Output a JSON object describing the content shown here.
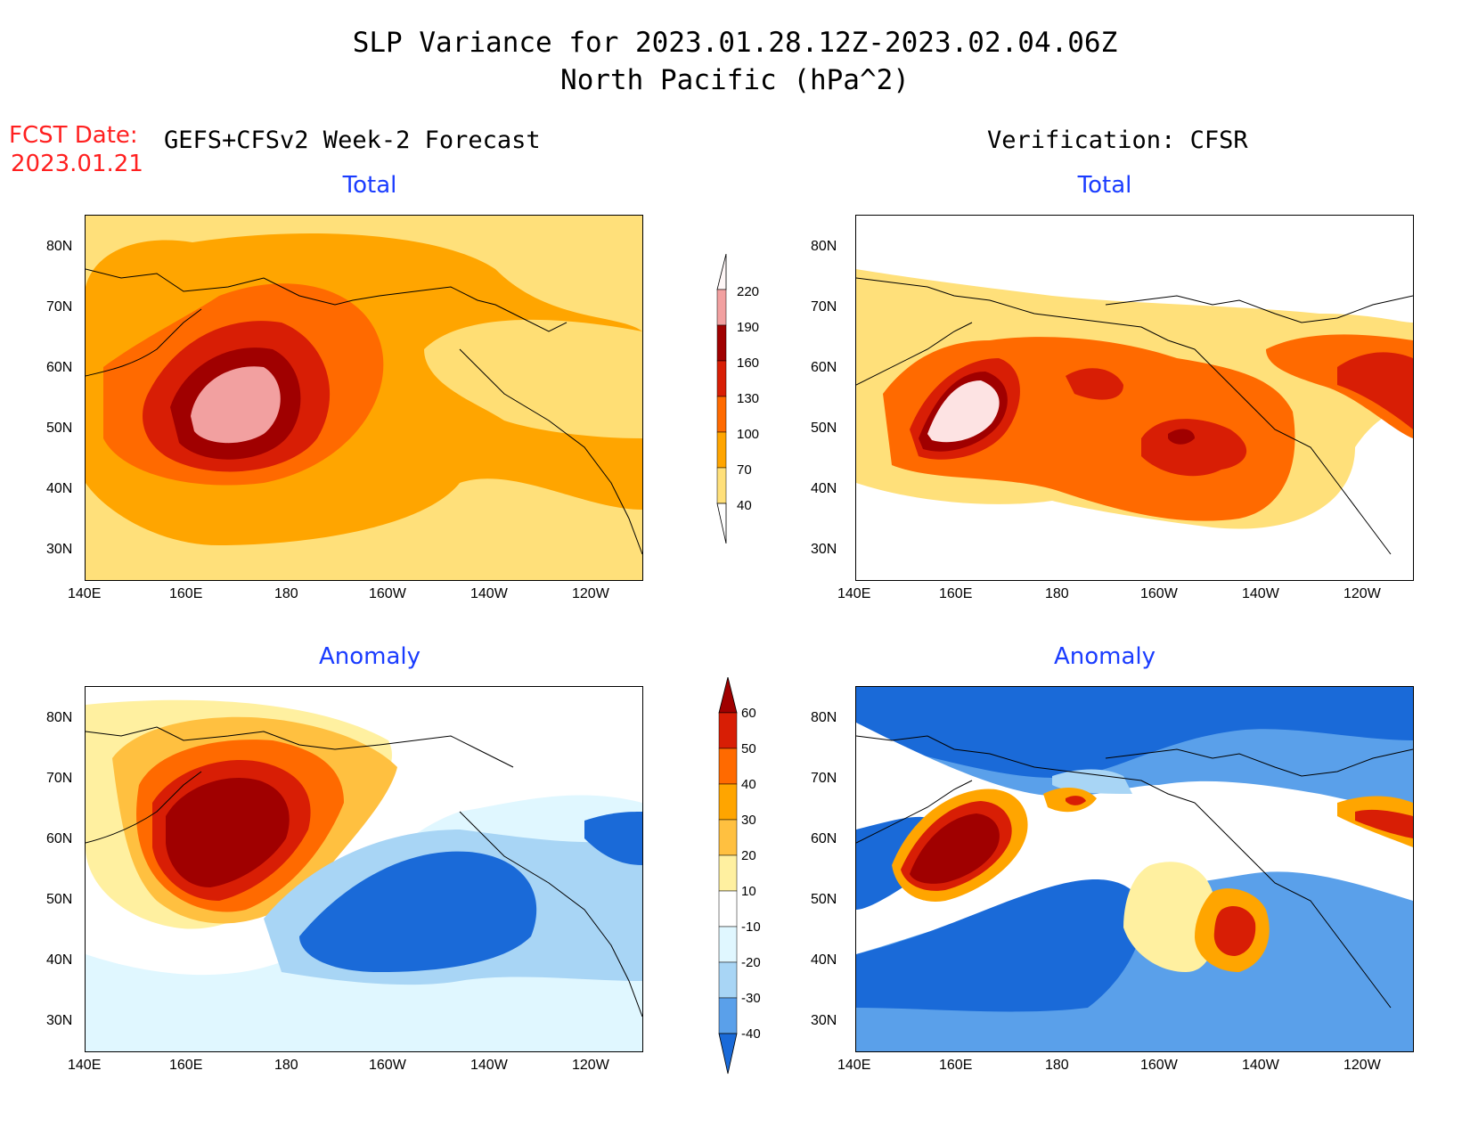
{
  "title": {
    "line1": "SLP Variance for 2023.01.28.12Z-2023.02.04.06Z",
    "line2": "North Pacific (hPa^2)"
  },
  "fcst_date": {
    "label": "FCST Date:",
    "value": "2023.01.21"
  },
  "columns": {
    "left_heading": "GEFS+CFSv2 Week-2 Forecast",
    "right_heading": "Verification: CFSR"
  },
  "panels": {
    "forecast_total_title": "Total",
    "verif_total_title": "Total",
    "forecast_anomaly_title": "Anomaly",
    "verif_anomaly_title": "Anomaly"
  },
  "axes": {
    "lat_labels": [
      "80N",
      "70N",
      "60N",
      "50N",
      "40N",
      "30N"
    ],
    "lon_labels": [
      "140E",
      "160E",
      "180",
      "160W",
      "140W",
      "120W"
    ]
  },
  "colorbar_total": {
    "labels": [
      "220",
      "190",
      "160",
      "130",
      "100",
      "70",
      "40"
    ],
    "colors": [
      "#fde3e3",
      "#f2a0a0",
      "#a00000",
      "#d81e05",
      "#ff6a00",
      "#ffa500",
      "#ffe07a"
    ]
  },
  "colorbar_anomaly": {
    "labels": [
      "60",
      "50",
      "40",
      "30",
      "20",
      "10",
      "-10",
      "-20",
      "-30",
      "-40"
    ],
    "colors": [
      "#a00000",
      "#d81e05",
      "#ff6a00",
      "#ffa500",
      "#ffc040",
      "#fff0a0",
      "#ffffff",
      "#e0f7ff",
      "#a8d5f5",
      "#5aa0ea",
      "#1a6ad8"
    ]
  }
}
